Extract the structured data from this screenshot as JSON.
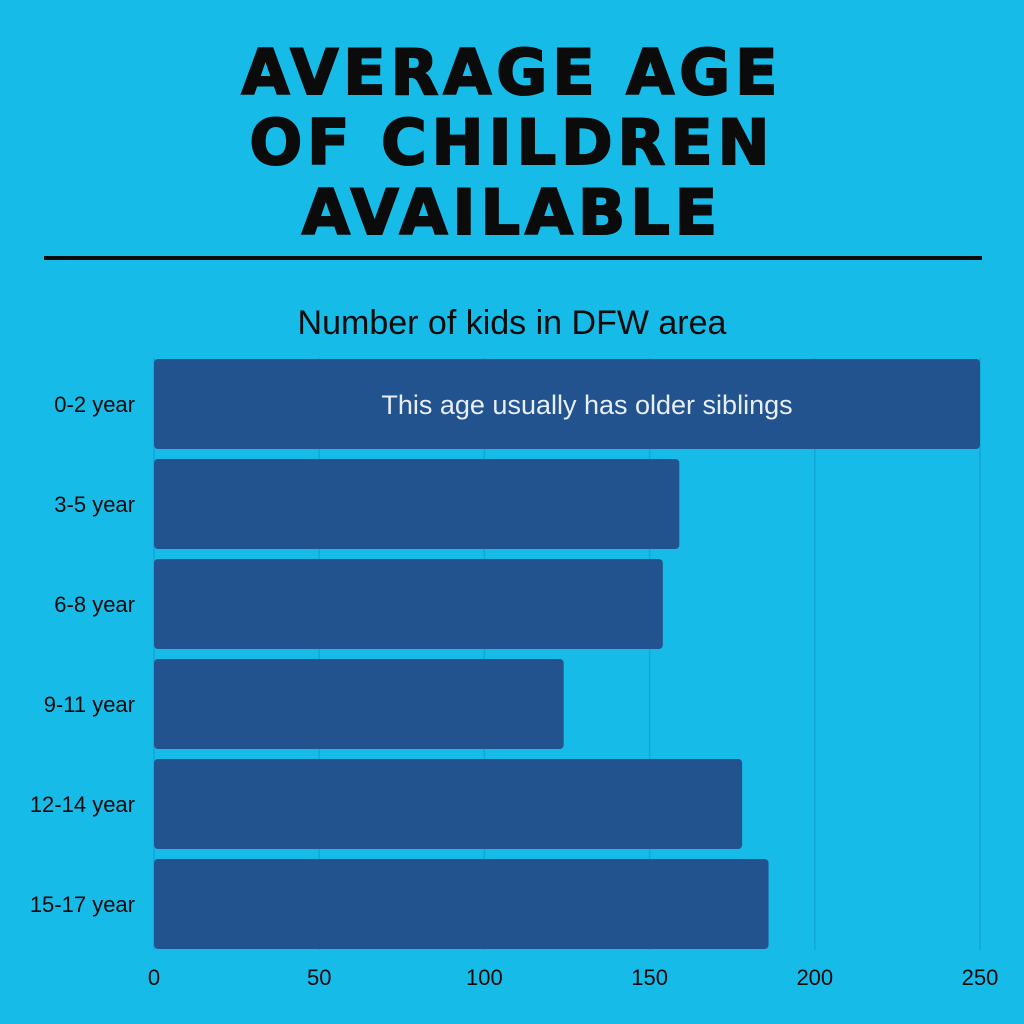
{
  "headline": {
    "lines": [
      "AVERAGE AGE",
      "OF CHILDREN",
      "AVAILABLE"
    ]
  },
  "colors": {
    "background": "#17bbe8",
    "bar": "#23538e",
    "gridline": "#12a8d6",
    "text": "#0b0b0b"
  },
  "chart_data": {
    "type": "bar",
    "orientation": "horizontal",
    "title": "Number of kids in DFW area",
    "categories": [
      "0-2 year",
      "3-5 year",
      "6-8 year",
      "9-11 year",
      "12-14 year",
      "15-17 year"
    ],
    "values": [
      250,
      159,
      154,
      124,
      178,
      186
    ],
    "xlim": [
      0,
      250
    ],
    "xticks": [
      0,
      50,
      100,
      150,
      200,
      250
    ],
    "grid": true,
    "annotations": [
      {
        "category": "0-2 year",
        "text": "This age usually has older siblings"
      }
    ]
  }
}
